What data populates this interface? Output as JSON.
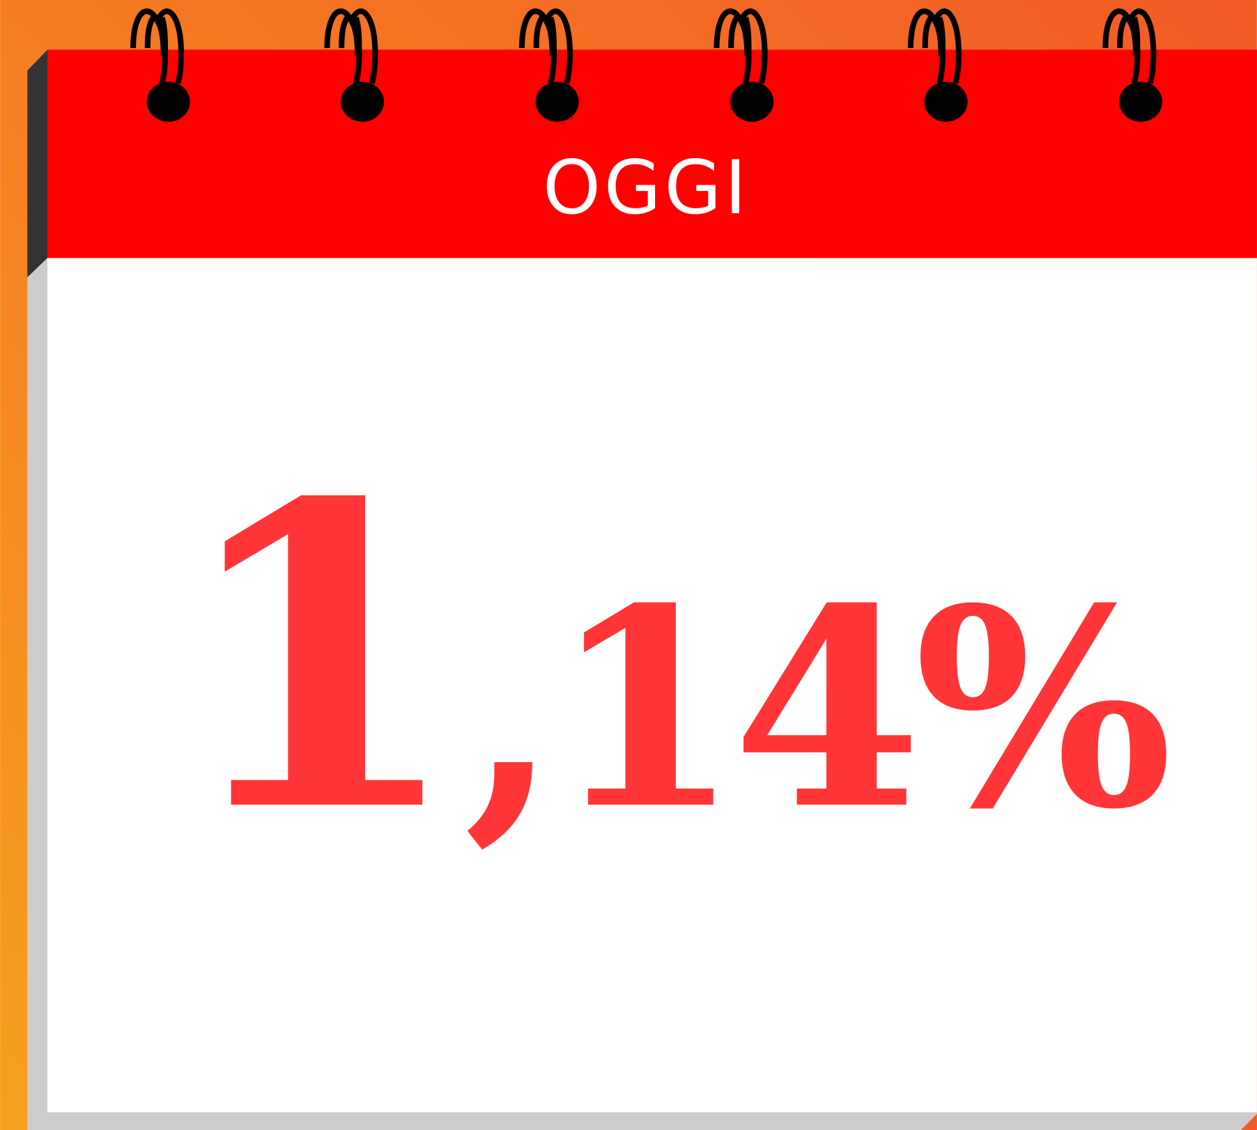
{
  "header": {
    "label": "OGGI"
  },
  "figure": {
    "main": "1",
    "rest": ",14%"
  }
}
